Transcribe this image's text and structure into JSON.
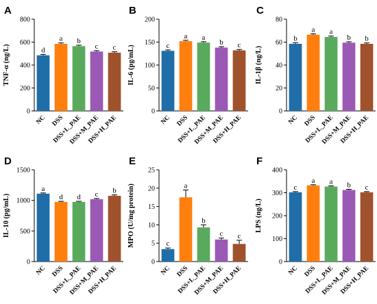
{
  "colors": [
    "#1f6ea8",
    "#ff7f0e",
    "#5aaa5e",
    "#9b59b6",
    "#a0522d"
  ],
  "chart_data": [
    {
      "type": "bar",
      "panel": "A",
      "ylabel": "TNF-α (ng/L)",
      "ylim": [
        0,
        800
      ],
      "yticks": [
        "0",
        "200",
        "400",
        "600",
        "800"
      ],
      "categories": [
        "NC",
        "DSS",
        "DSS+L_PAE",
        "DSS+M_PAE",
        "DSS+H_PAE"
      ],
      "values": [
        485,
        585,
        565,
        518,
        508
      ],
      "errors": [
        8,
        8,
        8,
        8,
        8
      ],
      "letters": [
        "d",
        "a",
        "b",
        "c",
        "c"
      ]
    },
    {
      "type": "bar",
      "panel": "B",
      "ylabel": "IL-6 (pg/mL)",
      "ylim": [
        0,
        200
      ],
      "yticks": [
        "0",
        "50",
        "100",
        "150",
        "200"
      ],
      "categories": [
        "NC",
        "DSS",
        "DSS+L_PAE",
        "DSS+M_PAE",
        "DSS+H_PAE"
      ],
      "values": [
        131,
        152,
        149,
        138,
        132
      ],
      "errors": [
        2,
        2,
        2,
        2,
        2
      ],
      "letters": [
        "c",
        "a",
        "a",
        "b",
        "c"
      ]
    },
    {
      "type": "bar",
      "panel": "C",
      "ylabel": "IL-1β (ng/L)",
      "ylim": [
        0,
        80
      ],
      "yticks": [
        "0",
        "20",
        "40",
        "60",
        "80"
      ],
      "categories": [
        "NC",
        "DSS",
        "DSS+L_PAE",
        "DSS+M_PAE",
        "DSS+H_PAE"
      ],
      "values": [
        58.5,
        66.5,
        64.5,
        59.5,
        58.5
      ],
      "errors": [
        1,
        0.8,
        0.8,
        0.8,
        0.8
      ],
      "letters": [
        "b",
        "a",
        "a",
        "b",
        "b"
      ]
    },
    {
      "type": "bar",
      "panel": "D",
      "ylabel": "IL-10 (pg/mL)",
      "ylim": [
        0,
        1500
      ],
      "yticks": [
        "0",
        "500",
        "1000",
        "1500"
      ],
      "categories": [
        "NC",
        "DSS",
        "DSS+L_PAE",
        "DSS+M_PAE",
        "DSS+H_PAE"
      ],
      "values": [
        1110,
        975,
        975,
        1020,
        1075
      ],
      "errors": [
        12,
        10,
        10,
        12,
        15
      ],
      "letters": [
        "a",
        "d",
        "d",
        "c",
        "b"
      ]
    },
    {
      "type": "bar",
      "panel": "E",
      "ylabel": "MPO (U/mg protein)",
      "ylim": [
        0,
        25
      ],
      "yticks": [
        "0",
        "5",
        "10",
        "15",
        "20",
        "25"
      ],
      "categories": [
        "NC",
        "DSS",
        "DSS+L_PAE",
        "DSS+M_PAE",
        "DSS+H_PAE"
      ],
      "values": [
        3.4,
        17.5,
        9.3,
        6.0,
        4.8
      ],
      "errors": [
        0.3,
        2.0,
        0.7,
        0.4,
        1.0
      ],
      "letters": [
        "c",
        "a",
        "b",
        "c",
        "c"
      ]
    },
    {
      "type": "bar",
      "panel": "F",
      "ylabel": "LPS (ng/L)",
      "ylim": [
        0,
        400
      ],
      "yticks": [
        "0",
        "100",
        "200",
        "300",
        "400"
      ],
      "categories": [
        "NC",
        "DSS",
        "DSS+L_PAE",
        "DSS+M_PAE",
        "DSS+H_PAE"
      ],
      "values": [
        302,
        332,
        327,
        312,
        302
      ],
      "errors": [
        3,
        3,
        3,
        3,
        3
      ],
      "letters": [
        "c",
        "a",
        "a",
        "b",
        "c"
      ]
    }
  ]
}
